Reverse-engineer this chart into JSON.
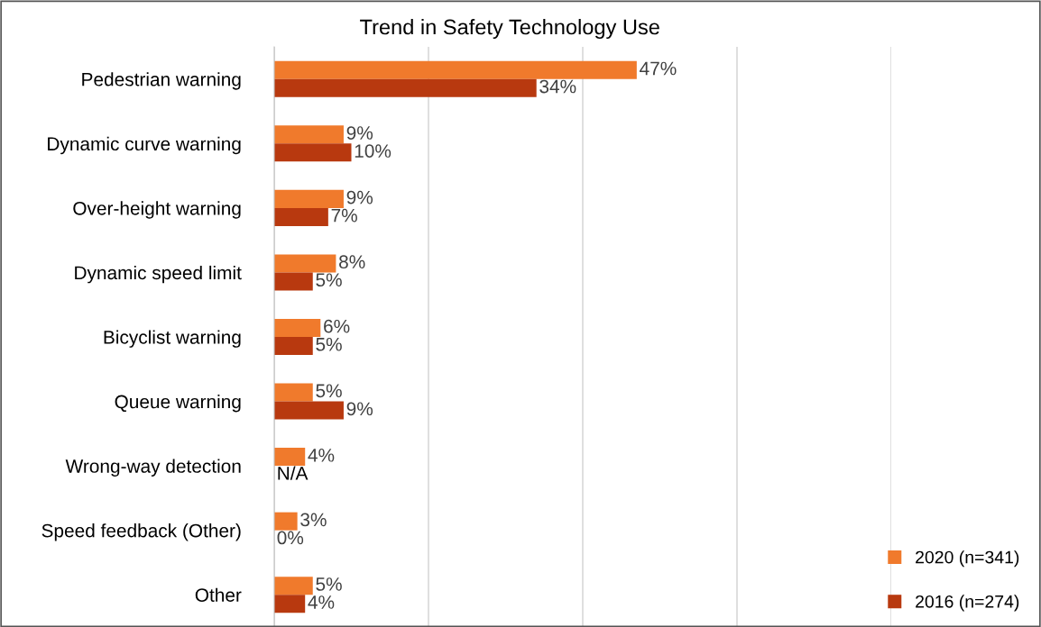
{
  "chart_data": {
    "type": "bar",
    "orientation": "horizontal",
    "title": "Trend in Safety Technology Use",
    "categories": [
      "Pedestrian warning",
      "Dynamic curve warning",
      "Over-height warning",
      "Dynamic speed limit",
      "Bicyclist warning",
      "Queue warning",
      "Wrong-way detection",
      "Speed feedback (Other)",
      "Other"
    ],
    "series": [
      {
        "name": "2020 (n=341)",
        "color": "#f07a2c",
        "values": [
          47,
          9,
          9,
          8,
          6,
          5,
          4,
          3,
          5
        ],
        "value_labels": [
          "47%",
          "9%",
          "9%",
          "8%",
          "6%",
          "5%",
          "4%",
          "3%",
          "5%"
        ]
      },
      {
        "name": "2016 (n=274)",
        "color": "#b8390f",
        "values": [
          34,
          10,
          7,
          5,
          5,
          9,
          null,
          0,
          4
        ],
        "value_labels": [
          "34%",
          "10%",
          "7%",
          "5%",
          "5%",
          "9%",
          "N/A",
          "0%",
          "4%"
        ]
      }
    ],
    "xlim": [
      0,
      80
    ],
    "xticks": [
      {
        "value": 0,
        "label": null
      },
      {
        "value": 20,
        "label": null
      },
      {
        "value": 40,
        "label": null
      },
      {
        "value": 60,
        "label": null
      },
      {
        "value": 80,
        "label": null
      }
    ],
    "tick_labels": "y",
    "grid": "x",
    "legend": "bottom right"
  }
}
